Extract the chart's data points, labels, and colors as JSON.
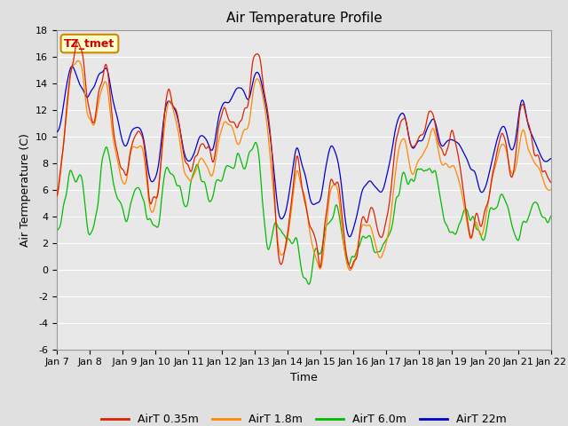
{
  "title": "Air Temperature Profile",
  "xlabel": "Time",
  "ylabel": "Air Termperature (C)",
  "ylim": [
    -6,
    18
  ],
  "yticks": [
    -6,
    -4,
    -2,
    0,
    2,
    4,
    6,
    8,
    10,
    12,
    14,
    16,
    18
  ],
  "xtick_labels": [
    "Jan 7",
    "Jan 8",
    " Jan 9",
    "Jan 10",
    "Jan 11",
    "Jan 12",
    "Jan 13",
    "Jan 14",
    "Jan 15",
    "Jan 16",
    "Jan 17",
    "Jan 18",
    "Jan 19",
    "Jan 20",
    "Jan 21",
    "Jan 22"
  ],
  "annotation_text": "TZ_tmet",
  "annotation_color": "#cc0000",
  "annotation_bg": "#ffffcc",
  "annotation_border": "#cc8800",
  "legend_labels": [
    "AirT 0.35m",
    "AirT 1.8m",
    "AirT 6.0m",
    "AirT 22m"
  ],
  "colors": [
    "#dd2200",
    "#ff8800",
    "#00bb00",
    "#0000cc"
  ],
  "bg_color": "#e0e0e0",
  "plot_bg": "#e8e8e8",
  "title_fontsize": 11,
  "axis_label_fontsize": 9,
  "tick_fontsize": 8,
  "legend_fontsize": 9,
  "n_points": 720,
  "seed": 7
}
